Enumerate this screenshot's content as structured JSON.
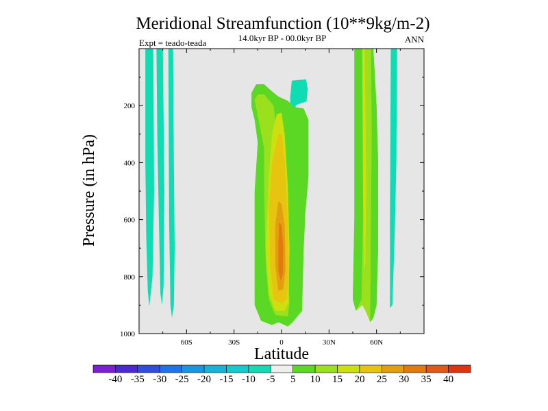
{
  "chart_data": {
    "type": "heatmap",
    "title": "Meridional Streamfunction (10**9kg/m-2)",
    "subtitle": "14.0kyr BP - 00.0kyr BP",
    "left_annotation": "Expt = teado-teada",
    "right_annotation": "ANN",
    "xlabel": "Latitude",
    "ylabel": "Pressure (in hPa)",
    "xlim": [
      -90,
      90
    ],
    "ylim": [
      0,
      1000
    ],
    "y_inverted": true,
    "x_ticks": [
      {
        "value": -60,
        "label": "60S"
      },
      {
        "value": -30,
        "label": "30S"
      },
      {
        "value": 0,
        "label": "0"
      },
      {
        "value": 30,
        "label": "30N"
      },
      {
        "value": 60,
        "label": "60N"
      }
    ],
    "y_ticks": [
      {
        "value": 200,
        "label": "200"
      },
      {
        "value": 400,
        "label": "400"
      },
      {
        "value": 600,
        "label": "600"
      },
      {
        "value": 800,
        "label": "800"
      },
      {
        "value": 1000,
        "label": "1000"
      }
    ],
    "background_color": "#e6e6e6",
    "colorbar": {
      "labels": [
        "-40",
        "-35",
        "-30",
        "-25",
        "-20",
        "-15",
        "-10",
        "-5",
        "5",
        "10",
        "15",
        "20",
        "25",
        "30",
        "35",
        "40"
      ],
      "colors": [
        "#7b1ed8",
        "#4a28d8",
        "#2f4de0",
        "#1f72e8",
        "#1a96e0",
        "#14b4d8",
        "#10cccc",
        "#10dcb4",
        "#eeeeee",
        "#5ad824",
        "#9ae01c",
        "#cce010",
        "#e6c410",
        "#e2a010",
        "#e27a10",
        "#e25814",
        "#e23212"
      ]
    },
    "contours": [
      {
        "name": "sh-band-1",
        "level": -10,
        "color": "#10dcb4",
        "polygon": [
          [
            -86,
            0
          ],
          [
            -81,
            0
          ],
          [
            -80.5,
            500
          ],
          [
            -81.5,
            800
          ],
          [
            -83.5,
            905
          ],
          [
            -84.5,
            850
          ],
          [
            -85.5,
            650
          ],
          [
            -86,
            400
          ]
        ]
      },
      {
        "name": "sh-band-2",
        "level": -10,
        "color": "#10dcb4",
        "polygon": [
          [
            -79,
            0
          ],
          [
            -75,
            0
          ],
          [
            -74,
            500
          ],
          [
            -74.5,
            830
          ],
          [
            -75.5,
            900
          ],
          [
            -76.5,
            860
          ],
          [
            -77.5,
            600
          ],
          [
            -78.5,
            300
          ]
        ]
      },
      {
        "name": "sh-band-3",
        "level": -10,
        "color": "#10dcb4",
        "polygon": [
          [
            -71.5,
            0
          ],
          [
            -68.5,
            0
          ],
          [
            -68,
            400
          ],
          [
            -67.5,
            700
          ],
          [
            -68,
            900
          ],
          [
            -69.2,
            945
          ],
          [
            -70.2,
            900
          ],
          [
            -71,
            600
          ]
        ]
      },
      {
        "name": "nh-band",
        "level": -10,
        "color": "#10dcb4",
        "polygon": [
          [
            69,
            0
          ],
          [
            73,
            0
          ],
          [
            72.5,
            400
          ],
          [
            71.5,
            650
          ],
          [
            70,
            900
          ],
          [
            68.5,
            910
          ],
          [
            68.5,
            600
          ]
        ]
      },
      {
        "name": "trop-upper-blob",
        "level": -10,
        "color": "#10dcb4",
        "polygon": [
          [
            6.5,
            112
          ],
          [
            15.5,
            108
          ],
          [
            16.5,
            140
          ],
          [
            15.8,
            185
          ],
          [
            9,
            198
          ],
          [
            7.5,
            285
          ],
          [
            5.5,
            285
          ],
          [
            5.5,
            170
          ]
        ]
      },
      {
        "name": "trop-5",
        "level": 5,
        "color": "#5ad824",
        "polygon": [
          [
            -19,
            155
          ],
          [
            -16,
            125
          ],
          [
            -11,
            125
          ],
          [
            -6,
            150
          ],
          [
            -2,
            168
          ],
          [
            4,
            183
          ],
          [
            8,
            205
          ],
          [
            14,
            210
          ],
          [
            17,
            250
          ],
          [
            17,
            450
          ],
          [
            15,
            580
          ],
          [
            14,
            700
          ],
          [
            13,
            920
          ],
          [
            7,
            960
          ],
          [
            4,
            975
          ],
          [
            -2,
            960
          ],
          [
            -6,
            970
          ],
          [
            -13,
            955
          ],
          [
            -17,
            900
          ],
          [
            -17,
            500
          ],
          [
            -15,
            330
          ],
          [
            -17,
            250
          ],
          [
            -19,
            205
          ]
        ]
      },
      {
        "name": "trop-10",
        "level": 10,
        "color": "#9ae01c",
        "polygon": [
          [
            -17,
            180
          ],
          [
            -15,
            160
          ],
          [
            -11,
            160
          ],
          [
            -8,
            180
          ],
          [
            -5,
            200
          ],
          [
            -3,
            295
          ],
          [
            -1,
            305
          ],
          [
            1,
            420
          ],
          [
            2,
            620
          ],
          [
            4,
            800
          ],
          [
            5,
            890
          ],
          [
            4,
            940
          ],
          [
            -4,
            935
          ],
          [
            -8,
            880
          ],
          [
            -10,
            760
          ],
          [
            -11,
            500
          ],
          [
            -11,
            350
          ]
        ]
      },
      {
        "name": "trop-15",
        "level": 15,
        "color": "#cce010",
        "polygon": [
          [
            -3,
            230
          ],
          [
            0,
            225
          ],
          [
            2,
            300
          ],
          [
            4,
            480
          ],
          [
            5,
            700
          ],
          [
            4.5,
            890
          ],
          [
            2,
            920
          ],
          [
            -4,
            920
          ],
          [
            -8,
            860
          ],
          [
            -10,
            700
          ],
          [
            -8,
            450
          ],
          [
            -6,
            300
          ]
        ]
      },
      {
        "name": "trop-20",
        "level": 20,
        "color": "#e6c410",
        "polygon": [
          [
            -2,
            300
          ],
          [
            0,
            300
          ],
          [
            2,
            400
          ],
          [
            4,
            620
          ],
          [
            4.5,
            800
          ],
          [
            3,
            880
          ],
          [
            0,
            895
          ],
          [
            -5,
            880
          ],
          [
            -7,
            770
          ],
          [
            -8,
            560
          ],
          [
            -6,
            400
          ]
        ]
      },
      {
        "name": "trop-25",
        "level": 25,
        "color": "#e2a010",
        "polygon": [
          [
            -2,
            535
          ],
          [
            0,
            545
          ],
          [
            2,
            620
          ],
          [
            2.5,
            780
          ],
          [
            1,
            845
          ],
          [
            -2,
            850
          ],
          [
            -4,
            760
          ],
          [
            -4,
            620
          ]
        ]
      },
      {
        "name": "trop-30",
        "level": 30,
        "color": "#e27a10",
        "polygon": [
          [
            -1.5,
            610
          ],
          [
            0,
            620
          ],
          [
            1,
            690
          ],
          [
            1,
            790
          ],
          [
            -0.5,
            815
          ],
          [
            -2,
            780
          ],
          [
            -2,
            680
          ]
        ]
      },
      {
        "name": "nh-10",
        "level": 10,
        "color": "#9ae01c",
        "polygon": [
          [
            46,
            0
          ],
          [
            58,
            0
          ],
          [
            60,
            200
          ],
          [
            61,
            400
          ],
          [
            61,
            700
          ],
          [
            60,
            900
          ],
          [
            58,
            945
          ],
          [
            56,
            960
          ],
          [
            53,
            920
          ],
          [
            51,
            900
          ],
          [
            47,
            920
          ],
          [
            45,
            880
          ],
          [
            46,
            600
          ],
          [
            46,
            300
          ]
        ]
      },
      {
        "name": "nh-5",
        "level": 5,
        "color": "#5ad824",
        "polygon": [
          [
            46,
            0
          ],
          [
            51,
            0
          ],
          [
            51.5,
            200
          ],
          [
            51.5,
            600
          ],
          [
            50.5,
            880
          ],
          [
            47,
            920
          ],
          [
            45,
            880
          ],
          [
            46,
            600
          ],
          [
            46,
            300
          ]
        ]
      },
      {
        "name": "nh-5-outer",
        "level": 5,
        "color": "#5ad824",
        "polygon": [
          [
            56.5,
            0
          ],
          [
            58,
            0
          ],
          [
            60,
            200
          ],
          [
            61,
            400
          ],
          [
            61,
            700
          ],
          [
            60,
            900
          ],
          [
            58,
            945
          ],
          [
            56,
            960
          ],
          [
            56.5,
            600
          ],
          [
            57,
            300
          ]
        ]
      },
      {
        "name": "nh-15",
        "level": 15,
        "color": "#cce010",
        "polygon": [
          [
            51,
            0
          ],
          [
            52.5,
            0
          ],
          [
            53,
            200
          ],
          [
            53.5,
            500
          ],
          [
            53,
            750
          ],
          [
            52,
            780
          ],
          [
            51.5,
            500
          ],
          [
            51.2,
            200
          ]
        ]
      }
    ]
  }
}
